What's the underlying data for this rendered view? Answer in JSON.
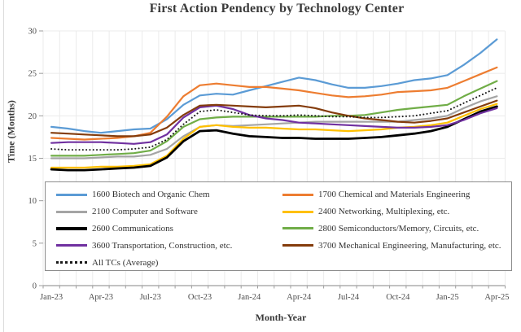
{
  "chart_data": {
    "type": "line",
    "title": "First Action Pendency by Technology Center",
    "xlabel": "Month-Year",
    "ylabel": "Time (Months)",
    "ylim": [
      0,
      30
    ],
    "y_ticks": [
      0,
      5,
      10,
      15,
      20,
      25,
      30
    ],
    "grid": "both",
    "legend_position": "inside-bottom",
    "x_tick_labels": [
      "Jan-23",
      "Apr-23",
      "Jul-23",
      "Oct-23",
      "Jan-24",
      "Apr-24",
      "Jul-24",
      "Oct-24",
      "Jan-25",
      "Apr-25"
    ],
    "x": [
      "Jan-23",
      "Feb-23",
      "Mar-23",
      "Apr-23",
      "May-23",
      "Jun-23",
      "Jul-23",
      "Aug-23",
      "Sep-23",
      "Oct-23",
      "Nov-23",
      "Dec-23",
      "Jan-24",
      "Feb-24",
      "Mar-24",
      "Apr-24",
      "May-24",
      "Jun-24",
      "Jul-24",
      "Aug-24",
      "Sep-24",
      "Oct-24",
      "Nov-24",
      "Dec-24",
      "Jan-25",
      "Feb-25",
      "Mar-25",
      "Apr-25"
    ],
    "series": [
      {
        "id": "1600",
        "name": "1600 Biotech and Organic Chem",
        "color": "#5B9BD5",
        "dotted": false,
        "values": [
          18.7,
          18.5,
          18.2,
          18.0,
          18.2,
          18.4,
          18.5,
          19.6,
          21.3,
          22.4,
          22.6,
          22.5,
          23.0,
          23.5,
          24.0,
          24.5,
          24.2,
          23.7,
          23.3,
          23.3,
          23.5,
          23.8,
          24.2,
          24.4,
          24.8,
          26.0,
          27.4,
          29.0
        ]
      },
      {
        "id": "1700",
        "name": "1700 Chemical and Materials Engineering",
        "color": "#ED7D31",
        "dotted": false,
        "values": [
          17.4,
          17.3,
          17.2,
          17.3,
          17.4,
          17.6,
          18.0,
          19.9,
          22.3,
          23.6,
          23.8,
          23.6,
          23.4,
          23.4,
          23.2,
          23.0,
          22.7,
          22.4,
          22.2,
          22.3,
          22.5,
          22.8,
          22.9,
          23.0,
          23.3,
          24.1,
          24.9,
          25.7
        ]
      },
      {
        "id": "2100",
        "name": "2100 Computer and Software",
        "color": "#A5A5A5",
        "dotted": false,
        "values": [
          15.0,
          15.0,
          15.0,
          15.1,
          15.2,
          15.2,
          15.4,
          16.1,
          17.6,
          18.7,
          18.9,
          18.8,
          18.9,
          19.0,
          19.1,
          19.2,
          19.3,
          19.3,
          19.3,
          19.3,
          19.3,
          19.3,
          19.5,
          19.7,
          20.0,
          20.9,
          21.7,
          22.3
        ]
      },
      {
        "id": "2400",
        "name": "2400 Networking, Multiplexing, etc.",
        "color": "#FFC000",
        "dotted": false,
        "values": [
          13.9,
          13.9,
          13.9,
          14.0,
          14.0,
          14.1,
          14.3,
          15.3,
          17.3,
          18.7,
          18.9,
          18.7,
          18.6,
          18.6,
          18.5,
          18.4,
          18.4,
          18.3,
          18.2,
          18.3,
          18.4,
          18.6,
          18.7,
          18.9,
          19.2,
          20.0,
          20.8,
          21.4
        ]
      },
      {
        "id": "2600",
        "name": "2600 Communications",
        "color": "#000000",
        "dotted": false,
        "values": [
          13.7,
          13.6,
          13.6,
          13.7,
          13.8,
          13.9,
          14.1,
          15.1,
          17.0,
          18.2,
          18.3,
          17.9,
          17.6,
          17.5,
          17.4,
          17.4,
          17.3,
          17.3,
          17.3,
          17.4,
          17.5,
          17.7,
          17.9,
          18.2,
          18.7,
          19.6,
          20.5,
          21.1
        ]
      },
      {
        "id": "2800",
        "name": "2800 Semiconductors/Memory, Circuits, etc.",
        "color": "#70AD47",
        "dotted": false,
        "values": [
          15.3,
          15.3,
          15.3,
          15.4,
          15.5,
          15.6,
          15.9,
          17.0,
          18.7,
          19.6,
          19.8,
          19.9,
          19.9,
          19.9,
          19.9,
          19.9,
          19.9,
          20.0,
          20.0,
          20.1,
          20.4,
          20.7,
          20.9,
          21.1,
          21.3,
          22.3,
          23.2,
          24.1
        ]
      },
      {
        "id": "3600",
        "name": "3600 Transportation, Construction, etc.",
        "color": "#7030A0",
        "dotted": false,
        "values": [
          16.8,
          16.9,
          16.9,
          16.9,
          16.8,
          16.7,
          16.9,
          17.8,
          19.8,
          21.0,
          21.2,
          20.8,
          20.1,
          19.7,
          19.5,
          19.2,
          19.1,
          19.0,
          18.9,
          18.8,
          18.7,
          18.6,
          18.6,
          18.7,
          18.9,
          19.5,
          20.3,
          20.9
        ]
      },
      {
        "id": "3700",
        "name": "3700 Mechanical Engineering, Manufacturing, etc.",
        "color": "#843C0C",
        "dotted": false,
        "values": [
          18.0,
          17.9,
          17.8,
          17.7,
          17.6,
          17.6,
          17.8,
          18.6,
          20.1,
          21.2,
          21.3,
          21.2,
          21.1,
          21.0,
          21.1,
          21.2,
          20.9,
          20.4,
          20.0,
          19.7,
          19.5,
          19.3,
          19.2,
          19.4,
          19.7,
          20.4,
          21.1,
          21.8
        ]
      },
      {
        "id": "all",
        "name": "All TCs (Average)",
        "color": "#1a1a1a",
        "dotted": true,
        "values": [
          16.1,
          16.0,
          16.0,
          16.0,
          16.0,
          16.1,
          16.3,
          17.2,
          19.0,
          20.5,
          20.7,
          20.4,
          20.1,
          20.0,
          20.0,
          20.1,
          20.0,
          19.9,
          19.9,
          19.8,
          19.8,
          19.9,
          20.0,
          20.3,
          20.6,
          21.5,
          22.4,
          23.3
        ]
      }
    ]
  }
}
